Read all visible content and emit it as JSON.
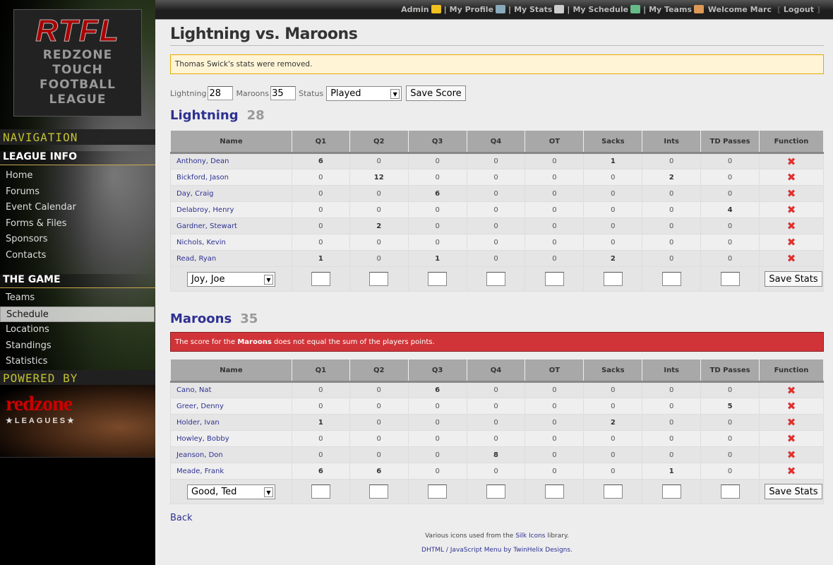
{
  "sidebar": {
    "logo_title": "RTFL",
    "logo_sub": [
      "REDZONE",
      "TOUCH",
      "FOOTBALL",
      "LEAGUE"
    ],
    "navigation_label": "NAVIGATION",
    "sections": [
      {
        "title": "LEAGUE INFO",
        "items": [
          "Home",
          "Forums",
          "Event Calendar",
          "Forms & Files",
          "Sponsors",
          "Contacts"
        ]
      },
      {
        "title": "THE GAME",
        "items": [
          "Teams",
          "Schedule",
          "Locations",
          "Standings",
          "Statistics"
        ],
        "active": "Schedule"
      }
    ],
    "powered_label": "POWERED BY",
    "powered_logo": "redzone",
    "powered_logo_sub": "★LEAGUES★"
  },
  "topbar": {
    "links": [
      {
        "label": "Admin",
        "icon": "star-icon",
        "color": "#f0c020"
      },
      {
        "label": "My Profile",
        "icon": "profile-card-icon",
        "color": "#8ab"
      },
      {
        "label": "My Stats",
        "icon": "calculator-icon",
        "color": "#ccc"
      },
      {
        "label": "My Schedule",
        "icon": "calendar-icon",
        "color": "#6b8"
      },
      {
        "label": "My Teams",
        "icon": "group-icon",
        "color": "#d95"
      }
    ],
    "welcome": "Welcome Marc",
    "logout": "Logout"
  },
  "page": {
    "title": "Lightning vs. Maroons",
    "notice": "Thomas Swick's stats were removed."
  },
  "score_form": {
    "home_label": "Lightning",
    "home_score": "28",
    "away_label": "Maroons",
    "away_score": "35",
    "status_label": "Status",
    "status_value": "Played",
    "save_label": "Save Score"
  },
  "columns": [
    "Name",
    "Q1",
    "Q2",
    "Q3",
    "Q4",
    "OT",
    "Sacks",
    "Ints",
    "TD Passes",
    "Function"
  ],
  "teams": [
    {
      "name": "Lightning",
      "score": "28",
      "error": null,
      "add_player": "Joy, Joe",
      "save_label": "Save Stats",
      "players": [
        [
          "Anthony, Dean",
          6,
          0,
          0,
          0,
          0,
          1,
          0,
          0
        ],
        [
          "Bickford, Jason",
          0,
          12,
          0,
          0,
          0,
          0,
          2,
          0
        ],
        [
          "Day, Craig",
          0,
          0,
          6,
          0,
          0,
          0,
          0,
          0
        ],
        [
          "Delabroy, Henry",
          0,
          0,
          0,
          0,
          0,
          0,
          0,
          4
        ],
        [
          "Gardner, Stewart",
          0,
          2,
          0,
          0,
          0,
          0,
          0,
          0
        ],
        [
          "Nichols, Kevin",
          0,
          0,
          0,
          0,
          0,
          0,
          0,
          0
        ],
        [
          "Read, Ryan",
          1,
          0,
          1,
          0,
          0,
          2,
          0,
          0
        ]
      ]
    },
    {
      "name": "Maroons",
      "score": "35",
      "error": {
        "pre": "The score for the ",
        "bold": "Maroons",
        "post": " does not equal the sum of the players points."
      },
      "add_player": "Good, Ted",
      "save_label": "Save Stats",
      "players": [
        [
          "Cano, Nat",
          0,
          0,
          6,
          0,
          0,
          0,
          0,
          0
        ],
        [
          "Greer, Denny",
          0,
          0,
          0,
          0,
          0,
          0,
          0,
          5
        ],
        [
          "Holder, Ivan",
          1,
          0,
          0,
          0,
          0,
          2,
          0,
          0
        ],
        [
          "Howley, Bobby",
          0,
          0,
          0,
          0,
          0,
          0,
          0,
          0
        ],
        [
          "Jeanson, Don",
          0,
          0,
          0,
          8,
          0,
          0,
          0,
          0
        ],
        [
          "Meade, Frank",
          6,
          6,
          0,
          0,
          0,
          0,
          1,
          0
        ]
      ]
    }
  ],
  "back_label": "Back",
  "footer": {
    "line1_pre": "Various icons used from the ",
    "line1_link": "Silk Icons",
    "line1_post": " library.",
    "line2_link": "DHTML / JavaScript Menu by TwinHelix Designs",
    "line2_post": "."
  }
}
